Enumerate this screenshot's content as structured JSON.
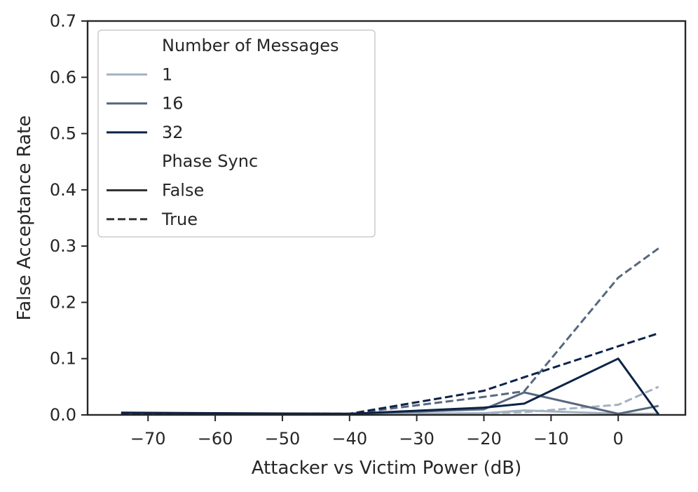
{
  "chart_data": {
    "type": "line",
    "xlabel": "Attacker vs Victim Power (dB)",
    "ylabel": "False Acceptance Rate",
    "xlim": [
      -79,
      10
    ],
    "ylim": [
      0.0,
      0.7
    ],
    "xticks": [
      -70,
      -60,
      -50,
      -40,
      -30,
      -20,
      -10,
      0
    ],
    "xtick_labels": [
      "−70",
      "−60",
      "−50",
      "−40",
      "−30",
      "−20",
      "−10",
      "0"
    ],
    "yticks": [
      0.0,
      0.1,
      0.2,
      0.3,
      0.4,
      0.5,
      0.6,
      0.7
    ],
    "ytick_labels": [
      "0.0",
      "0.1",
      "0.2",
      "0.3",
      "0.4",
      "0.5",
      "0.6",
      "0.7"
    ],
    "grid": false,
    "legend": {
      "placement": "top-left",
      "entries": [
        {
          "label": "Number of Messages",
          "kind": "header"
        },
        {
          "label": "1",
          "kind": "line",
          "color": "#a3b1c2",
          "dash": "solid"
        },
        {
          "label": "16",
          "kind": "line",
          "color": "#57687f",
          "dash": "solid"
        },
        {
          "label": "32",
          "kind": "line",
          "color": "#0c2347",
          "dash": "solid"
        },
        {
          "label": "Phase Sync",
          "kind": "header"
        },
        {
          "label": "False",
          "kind": "line",
          "color": "#333333",
          "dash": "solid"
        },
        {
          "label": "True",
          "kind": "line",
          "color": "#333333",
          "dash": "dashed"
        }
      ]
    },
    "series": [
      {
        "messages": "1",
        "phase_sync": "False",
        "color": "#a3b1c2",
        "dash": "solid",
        "x": [
          -74,
          -40,
          -20,
          -14,
          0,
          6
        ],
        "y": [
          0.003,
          0.002,
          0.003,
          0.008,
          0.002,
          0.002
        ]
      },
      {
        "messages": "1",
        "phase_sync": "True",
        "color": "#a3b1c2",
        "dash": "dashed",
        "x": [
          -74,
          -40,
          -20,
          -14,
          0,
          6
        ],
        "y": [
          0.002,
          0.001,
          0.003,
          0.005,
          0.018,
          0.05
        ]
      },
      {
        "messages": "16",
        "phase_sync": "False",
        "color": "#57687f",
        "dash": "solid",
        "x": [
          -74,
          -40,
          -20,
          -14,
          0,
          6
        ],
        "y": [
          0.003,
          0.002,
          0.01,
          0.04,
          0.002,
          0.016
        ]
      },
      {
        "messages": "16",
        "phase_sync": "True",
        "color": "#57687f",
        "dash": "dashed",
        "x": [
          -74,
          -40,
          -20,
          -14,
          0,
          6
        ],
        "y": [
          0.003,
          0.002,
          0.032,
          0.042,
          0.244,
          0.296
        ]
      },
      {
        "messages": "32",
        "phase_sync": "False",
        "color": "#0c2347",
        "dash": "solid",
        "x": [
          -74,
          -40,
          -20,
          -14,
          0,
          6
        ],
        "y": [
          0.004,
          0.002,
          0.013,
          0.02,
          0.1,
          0.001
        ]
      },
      {
        "messages": "32",
        "phase_sync": "True",
        "color": "#0c2347",
        "dash": "dashed",
        "x": [
          -74,
          -40,
          -20,
          -14,
          0,
          6
        ],
        "y": [
          0.003,
          0.002,
          0.043,
          0.067,
          0.122,
          0.145
        ]
      }
    ]
  }
}
